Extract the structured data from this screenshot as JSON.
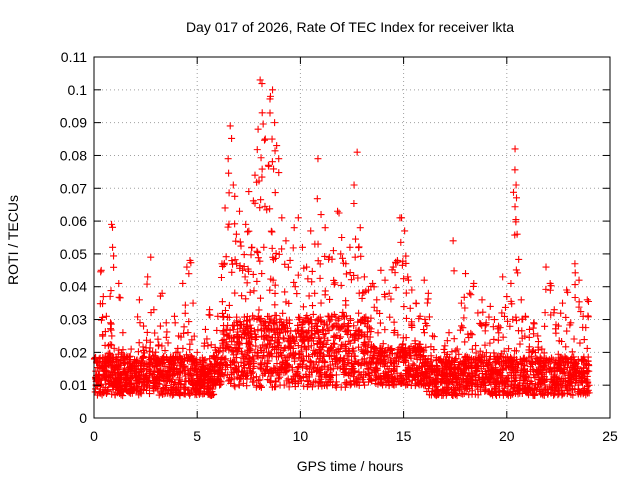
{
  "chart_data": {
    "type": "scatter",
    "title": "Day 017 of 2026, Rate Of TEC Index for receiver lkta",
    "xlabel": "GPS time / hours",
    "ylabel": "ROTI / TECUs",
    "xlim": [
      0,
      25
    ],
    "ylim": [
      0,
      0.11
    ],
    "x_ticks": [
      0,
      5,
      10,
      15,
      20,
      25
    ],
    "x_tick_labels": [
      "0",
      "5",
      "10",
      "15",
      "20",
      "25"
    ],
    "y_ticks": [
      0,
      0.01,
      0.02,
      0.03,
      0.04,
      0.05,
      0.06,
      0.07,
      0.08,
      0.09,
      0.1,
      0.11
    ],
    "y_tick_labels": [
      "0",
      "0.01",
      "0.02",
      "0.03",
      "0.04",
      "0.05",
      "0.06",
      "0.07",
      "0.08",
      "0.09",
      "0.1",
      "0.11"
    ],
    "grid": true,
    "marker": "+",
    "marker_color": "#ff0000",
    "series": [
      {
        "name": "ROTI",
        "points": [
          [
            0.1,
            0.012
          ],
          [
            0.25,
            0.018
          ],
          [
            0.35,
            0.045
          ],
          [
            0.45,
            0.037
          ],
          [
            0.6,
            0.031
          ],
          [
            0.7,
            0.022
          ],
          [
            0.8,
            0.029
          ],
          [
            0.85,
            0.059
          ],
          [
            0.9,
            0.052
          ],
          [
            1.0,
            0.016
          ],
          [
            1.2,
            0.041
          ],
          [
            1.4,
            0.026
          ],
          [
            1.6,
            0.014
          ],
          [
            1.8,
            0.021
          ],
          [
            2.0,
            0.017
          ],
          [
            2.2,
            0.036
          ],
          [
            2.4,
            0.028
          ],
          [
            2.6,
            0.043
          ],
          [
            2.75,
            0.049
          ],
          [
            2.9,
            0.033
          ],
          [
            3.1,
            0.024
          ],
          [
            3.3,
            0.038
          ],
          [
            3.5,
            0.029
          ],
          [
            3.7,
            0.018
          ],
          [
            3.9,
            0.031
          ],
          [
            4.1,
            0.025
          ],
          [
            4.3,
            0.041
          ],
          [
            4.5,
            0.046
          ],
          [
            4.65,
            0.048
          ],
          [
            4.8,
            0.035
          ],
          [
            5.0,
            0.02
          ],
          [
            5.2,
            0.015
          ],
          [
            5.4,
            0.027
          ],
          [
            5.6,
            0.033
          ],
          [
            5.8,
            0.019
          ],
          [
            6.0,
            0.031
          ],
          [
            6.2,
            0.047
          ],
          [
            6.35,
            0.064
          ],
          [
            6.5,
            0.079
          ],
          [
            6.6,
            0.089
          ],
          [
            6.75,
            0.071
          ],
          [
            6.9,
            0.056
          ],
          [
            7.05,
            0.063
          ],
          [
            7.2,
            0.045
          ],
          [
            7.35,
            0.059
          ],
          [
            7.5,
            0.069
          ],
          [
            7.65,
            0.052
          ],
          [
            7.8,
            0.074
          ],
          [
            7.95,
            0.088
          ],
          [
            8.05,
            0.103
          ],
          [
            8.15,
            0.093
          ],
          [
            8.3,
            0.085
          ],
          [
            8.45,
            0.077
          ],
          [
            8.55,
            0.098
          ],
          [
            8.65,
            0.1
          ],
          [
            8.75,
            0.09
          ],
          [
            8.85,
            0.083
          ],
          [
            8.95,
            0.079
          ],
          [
            9.1,
            0.061
          ],
          [
            9.3,
            0.054
          ],
          [
            9.5,
            0.048
          ],
          [
            9.7,
            0.058
          ],
          [
            9.9,
            0.061
          ],
          [
            10.1,
            0.052
          ],
          [
            10.3,
            0.046
          ],
          [
            10.5,
            0.057
          ],
          [
            10.7,
            0.053
          ],
          [
            10.85,
            0.079
          ],
          [
            11.0,
            0.062
          ],
          [
            11.2,
            0.058
          ],
          [
            11.4,
            0.049
          ],
          [
            11.6,
            0.051
          ],
          [
            11.8,
            0.063
          ],
          [
            12.0,
            0.055
          ],
          [
            12.2,
            0.047
          ],
          [
            12.4,
            0.052
          ],
          [
            12.6,
            0.071
          ],
          [
            12.75,
            0.081
          ],
          [
            12.9,
            0.058
          ],
          [
            13.1,
            0.043
          ],
          [
            13.3,
            0.039
          ],
          [
            13.5,
            0.041
          ],
          [
            13.7,
            0.036
          ],
          [
            13.9,
            0.045
          ],
          [
            14.1,
            0.042
          ],
          [
            14.3,
            0.038
          ],
          [
            14.5,
            0.046
          ],
          [
            14.7,
            0.048
          ],
          [
            14.9,
            0.061
          ],
          [
            15.05,
            0.057
          ],
          [
            15.2,
            0.043
          ],
          [
            15.4,
            0.039
          ],
          [
            15.6,
            0.035
          ],
          [
            15.8,
            0.031
          ],
          [
            16.0,
            0.042
          ],
          [
            16.2,
            0.038
          ],
          [
            16.4,
            0.025
          ],
          [
            16.6,
            0.016
          ],
          [
            16.8,
            0.018
          ],
          [
            17.0,
            0.022
          ],
          [
            17.2,
            0.026
          ],
          [
            17.4,
            0.054
          ],
          [
            17.6,
            0.021
          ],
          [
            17.8,
            0.035
          ],
          [
            18.0,
            0.044
          ],
          [
            18.2,
            0.038
          ],
          [
            18.4,
            0.041
          ],
          [
            18.6,
            0.032
          ],
          [
            18.8,
            0.036
          ],
          [
            19.0,
            0.029
          ],
          [
            19.2,
            0.034
          ],
          [
            19.4,
            0.03
          ],
          [
            19.6,
            0.028
          ],
          [
            19.8,
            0.043
          ],
          [
            20.0,
            0.037
          ],
          [
            20.2,
            0.041
          ],
          [
            20.4,
            0.082
          ],
          [
            20.45,
            0.071
          ],
          [
            20.5,
            0.056
          ],
          [
            20.7,
            0.036
          ],
          [
            20.9,
            0.031
          ],
          [
            21.1,
            0.027
          ],
          [
            21.3,
            0.029
          ],
          [
            21.5,
            0.025
          ],
          [
            21.7,
            0.021
          ],
          [
            21.9,
            0.046
          ],
          [
            22.1,
            0.041
          ],
          [
            22.3,
            0.033
          ],
          [
            22.5,
            0.028
          ],
          [
            22.7,
            0.035
          ],
          [
            22.9,
            0.039
          ],
          [
            23.1,
            0.029
          ],
          [
            23.3,
            0.047
          ],
          [
            23.5,
            0.042
          ],
          [
            23.7,
            0.031
          ],
          [
            23.9,
            0.036
          ]
        ]
      }
    ]
  }
}
